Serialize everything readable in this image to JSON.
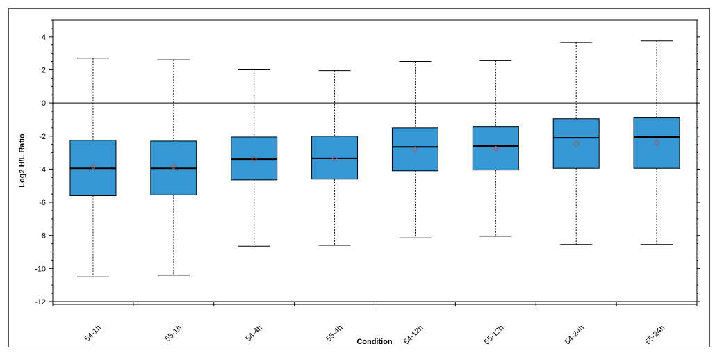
{
  "chart_data": {
    "type": "box",
    "xlabel": "Condition",
    "ylabel": "Log2 H/L Ratio",
    "ylim": [
      -12,
      5
    ],
    "yticks": [
      4,
      2,
      0,
      -2,
      -4,
      -6,
      -8,
      -10,
      -12
    ],
    "reference_line": 0,
    "box_color": "#3597d4",
    "mean_marker_color": "#c0504d",
    "categories": [
      "54-1h",
      "55-1h",
      "54-4h",
      "55-4h",
      "54-12h",
      "55-12h",
      "54-24h",
      "55-24h"
    ],
    "series": [
      {
        "category": "54-1h",
        "whisker_low": -10.5,
        "q1": -5.6,
        "median": -3.95,
        "q3": -2.25,
        "whisker_high": 2.7,
        "mean": -3.85
      },
      {
        "category": "55-1h",
        "whisker_low": -10.4,
        "q1": -5.55,
        "median": -3.95,
        "q3": -2.3,
        "whisker_high": 2.6,
        "mean": -3.85
      },
      {
        "category": "54-4h",
        "whisker_low": -8.65,
        "q1": -4.65,
        "median": -3.4,
        "q3": -2.05,
        "whisker_high": 2.0,
        "mean": -3.4
      },
      {
        "category": "55-4h",
        "whisker_low": -8.6,
        "q1": -4.6,
        "median": -3.35,
        "q3": -2.0,
        "whisker_high": 1.95,
        "mean": -3.35
      },
      {
        "category": "54-12h",
        "whisker_low": -8.15,
        "q1": -4.1,
        "median": -2.65,
        "q3": -1.5,
        "whisker_high": 2.5,
        "mean": -2.8
      },
      {
        "category": "55-12h",
        "whisker_low": -8.05,
        "q1": -4.05,
        "median": -2.6,
        "q3": -1.45,
        "whisker_high": 2.55,
        "mean": -2.75
      },
      {
        "category": "54-24h",
        "whisker_low": -8.55,
        "q1": -3.95,
        "median": -2.1,
        "q3": -0.95,
        "whisker_high": 3.65,
        "mean": -2.45
      },
      {
        "category": "55-24h",
        "whisker_low": -8.55,
        "q1": -3.95,
        "median": -2.05,
        "q3": -0.9,
        "whisker_high": 3.75,
        "mean": -2.4
      }
    ]
  }
}
